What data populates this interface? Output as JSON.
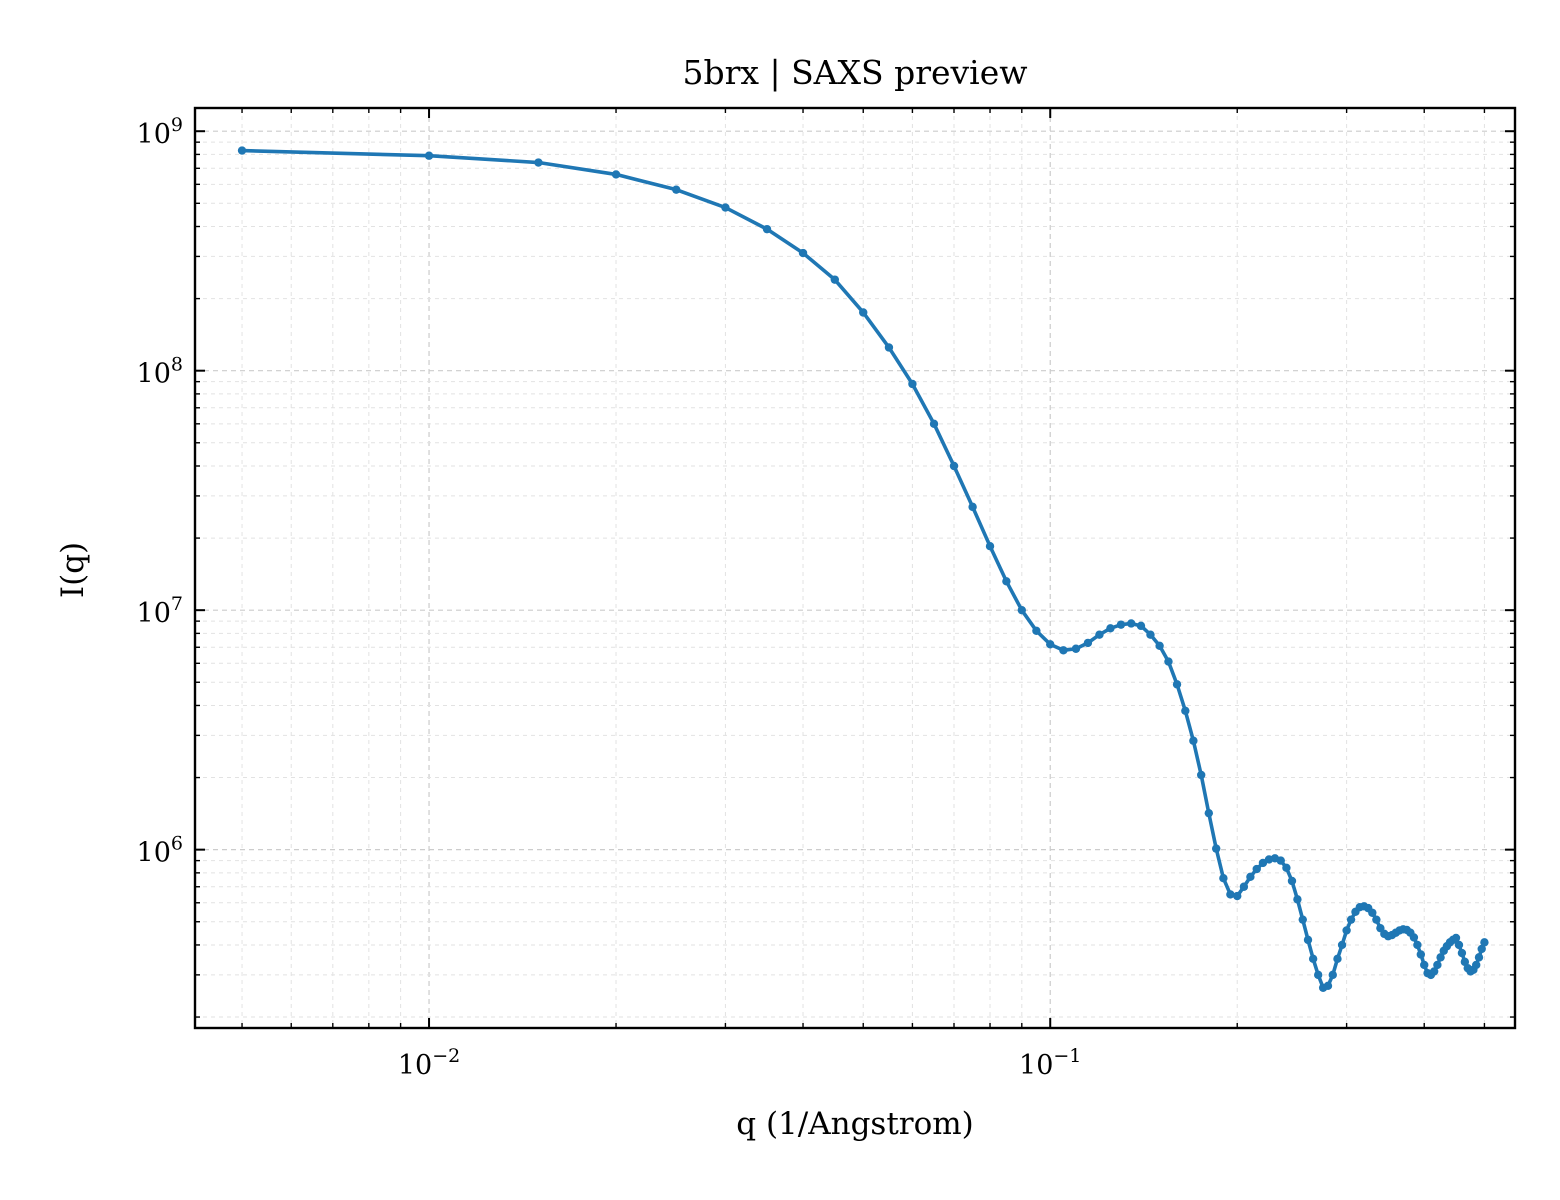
{
  "chart_data": {
    "type": "line",
    "title": "5brx | SAXS preview",
    "xlabel": "q (1/Angstrom)",
    "ylabel": "I(q)",
    "xscale": "log",
    "yscale": "log",
    "xlim": [
      0.0042,
      0.56
    ],
    "ylim": [
      180000,
      1250000000
    ],
    "grid": true,
    "legend": "none",
    "colors": {
      "series": "#1f77b4"
    },
    "x_ticks": [
      {
        "value": 0.01,
        "base": "10",
        "exp": "−2"
      },
      {
        "value": 0.1,
        "base": "10",
        "exp": "−1"
      }
    ],
    "y_ticks": [
      {
        "value": 1000000,
        "base": "10",
        "exp": "6"
      },
      {
        "value": 10000000,
        "base": "10",
        "exp": "7"
      },
      {
        "value": 100000000,
        "base": "10",
        "exp": "8"
      },
      {
        "value": 1000000000,
        "base": "10",
        "exp": "9"
      }
    ],
    "series": [
      {
        "marker": "circle",
        "x": [
          0.005,
          0.01,
          0.015,
          0.02,
          0.025,
          0.03,
          0.035,
          0.04,
          0.045,
          0.05,
          0.055,
          0.06,
          0.065,
          0.07,
          0.075,
          0.08,
          0.085,
          0.09,
          0.095,
          0.1,
          0.105,
          0.11,
          0.115,
          0.12,
          0.125,
          0.13,
          0.135,
          0.14,
          0.145,
          0.15,
          0.155,
          0.16,
          0.165,
          0.17,
          0.175,
          0.18,
          0.185,
          0.19,
          0.195,
          0.2,
          0.205,
          0.21,
          0.215,
          0.22,
          0.225,
          0.23,
          0.235,
          0.24,
          0.245,
          0.25,
          0.255,
          0.26,
          0.265,
          0.27,
          0.275,
          0.28,
          0.285,
          0.29,
          0.295,
          0.3,
          0.305,
          0.31,
          0.315,
          0.32,
          0.325,
          0.33,
          0.335,
          0.34,
          0.345,
          0.35,
          0.355,
          0.36,
          0.365,
          0.37,
          0.375,
          0.38,
          0.385,
          0.39,
          0.395,
          0.4,
          0.405,
          0.41,
          0.415,
          0.42,
          0.425,
          0.43,
          0.435,
          0.44,
          0.445,
          0.45,
          0.455,
          0.46,
          0.465,
          0.47,
          0.475,
          0.48,
          0.485,
          0.49,
          0.495,
          0.5
        ],
        "y": [
          830000000,
          790000000,
          740000000,
          660000000,
          570000000,
          480000000,
          390000000,
          310000000,
          240000000,
          175000000,
          125000000,
          88000000,
          60000000,
          40000000,
          27000000,
          18500000,
          13200000,
          10000000,
          8200000,
          7200000,
          6800000,
          6900000,
          7300000,
          7900000,
          8400000,
          8700000,
          8800000,
          8600000,
          7900000,
          7100000,
          6100000,
          4900000,
          3800000,
          2850000,
          2050000,
          1420000,
          1010000,
          760000,
          650000,
          640000,
          700000,
          770000,
          830000,
          880000,
          910000,
          920000,
          900000,
          840000,
          740000,
          620000,
          510000,
          420000,
          350000,
          300000,
          265000,
          270000,
          300000,
          350000,
          400000,
          460000,
          510000,
          550000,
          575000,
          580000,
          570000,
          545000,
          510000,
          470000,
          445000,
          435000,
          440000,
          450000,
          460000,
          465000,
          462000,
          450000,
          430000,
          400000,
          365000,
          330000,
          305000,
          300000,
          310000,
          330000,
          355000,
          378000,
          395000,
          410000,
          420000,
          428000,
          400000,
          370000,
          340000,
          320000,
          310000,
          315000,
          330000,
          355000,
          385000,
          410000
        ]
      }
    ]
  }
}
